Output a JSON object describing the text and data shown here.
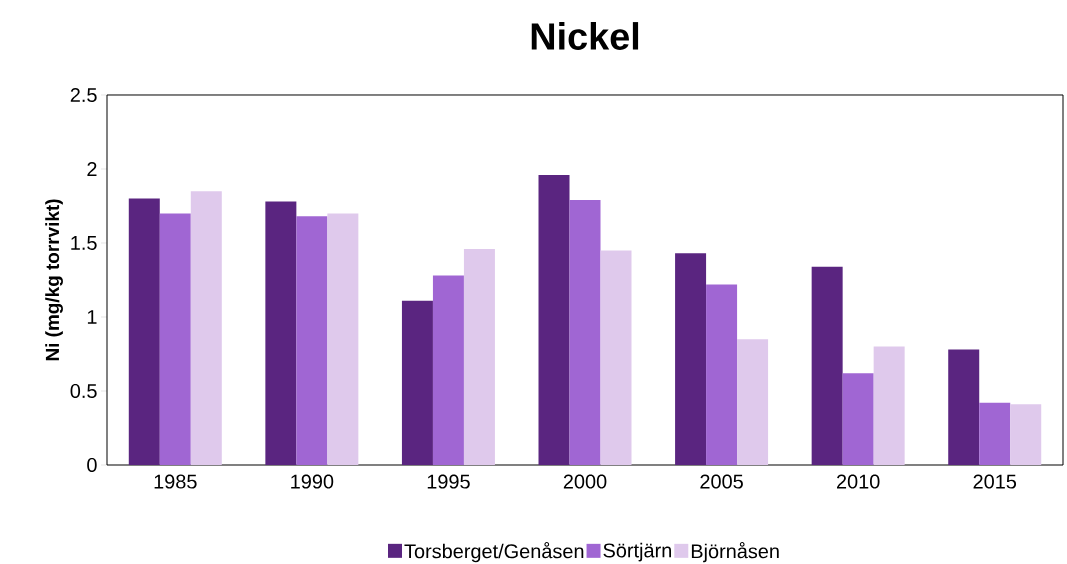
{
  "chart_data": {
    "type": "bar",
    "title": "Nickel",
    "ylabel": "Ni (mg/kg torrvikt)",
    "categories": [
      "1985",
      "1990",
      "1995",
      "2000",
      "2005",
      "2010",
      "2015"
    ],
    "series": [
      {
        "name": "Torsberget/Genåsen",
        "color": "#5a2580",
        "values": [
          1.8,
          1.78,
          1.11,
          1.96,
          1.43,
          1.34,
          0.78
        ]
      },
      {
        "name": "Sörtjärn",
        "color": "#a066d3",
        "values": [
          1.7,
          1.68,
          1.28,
          1.79,
          1.22,
          0.62,
          0.42
        ]
      },
      {
        "name": "Björnåsen",
        "color": "#dfc9ec",
        "values": [
          1.85,
          1.7,
          1.46,
          1.45,
          0.85,
          0.8,
          0.41
        ]
      }
    ],
    "ylim": [
      0,
      2.5
    ],
    "yticks": [
      0,
      0.5,
      1,
      1.5,
      2,
      2.5
    ],
    "legend": "bottom"
  }
}
